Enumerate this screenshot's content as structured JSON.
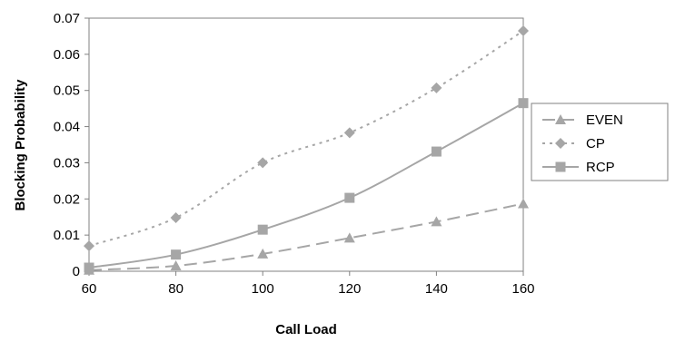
{
  "chart_data": {
    "type": "line",
    "x": [
      60,
      80,
      100,
      120,
      140,
      160
    ],
    "xlabel": "Call Load",
    "ylabel": "Blocking Probability",
    "xlim": [
      60,
      160
    ],
    "ylim": [
      0,
      0.07
    ],
    "x_ticks": [
      "60",
      "80",
      "100",
      "120",
      "140",
      "160"
    ],
    "y_ticks": [
      "0",
      "0.01",
      "0.02",
      "0.03",
      "0.04",
      "0.05",
      "0.06",
      "0.07"
    ],
    "grid": false,
    "legend_position": "right",
    "series": [
      {
        "name": "EVEN",
        "values": [
          0.0003,
          0.0015,
          0.0048,
          0.0092,
          0.0137,
          0.0187
        ],
        "marker": "triangle",
        "line_style": "dashed",
        "color": "#a6a6a6"
      },
      {
        "name": "CP",
        "values": [
          0.007,
          0.0148,
          0.03,
          0.0383,
          0.0507,
          0.0665
        ],
        "marker": "diamond",
        "line_style": "dotted",
        "color": "#a6a6a6"
      },
      {
        "name": "RCP",
        "values": [
          0.001,
          0.0046,
          0.0115,
          0.0203,
          0.0331,
          0.0465
        ],
        "marker": "square",
        "line_style": "solid",
        "color": "#a6a6a6"
      }
    ]
  }
}
